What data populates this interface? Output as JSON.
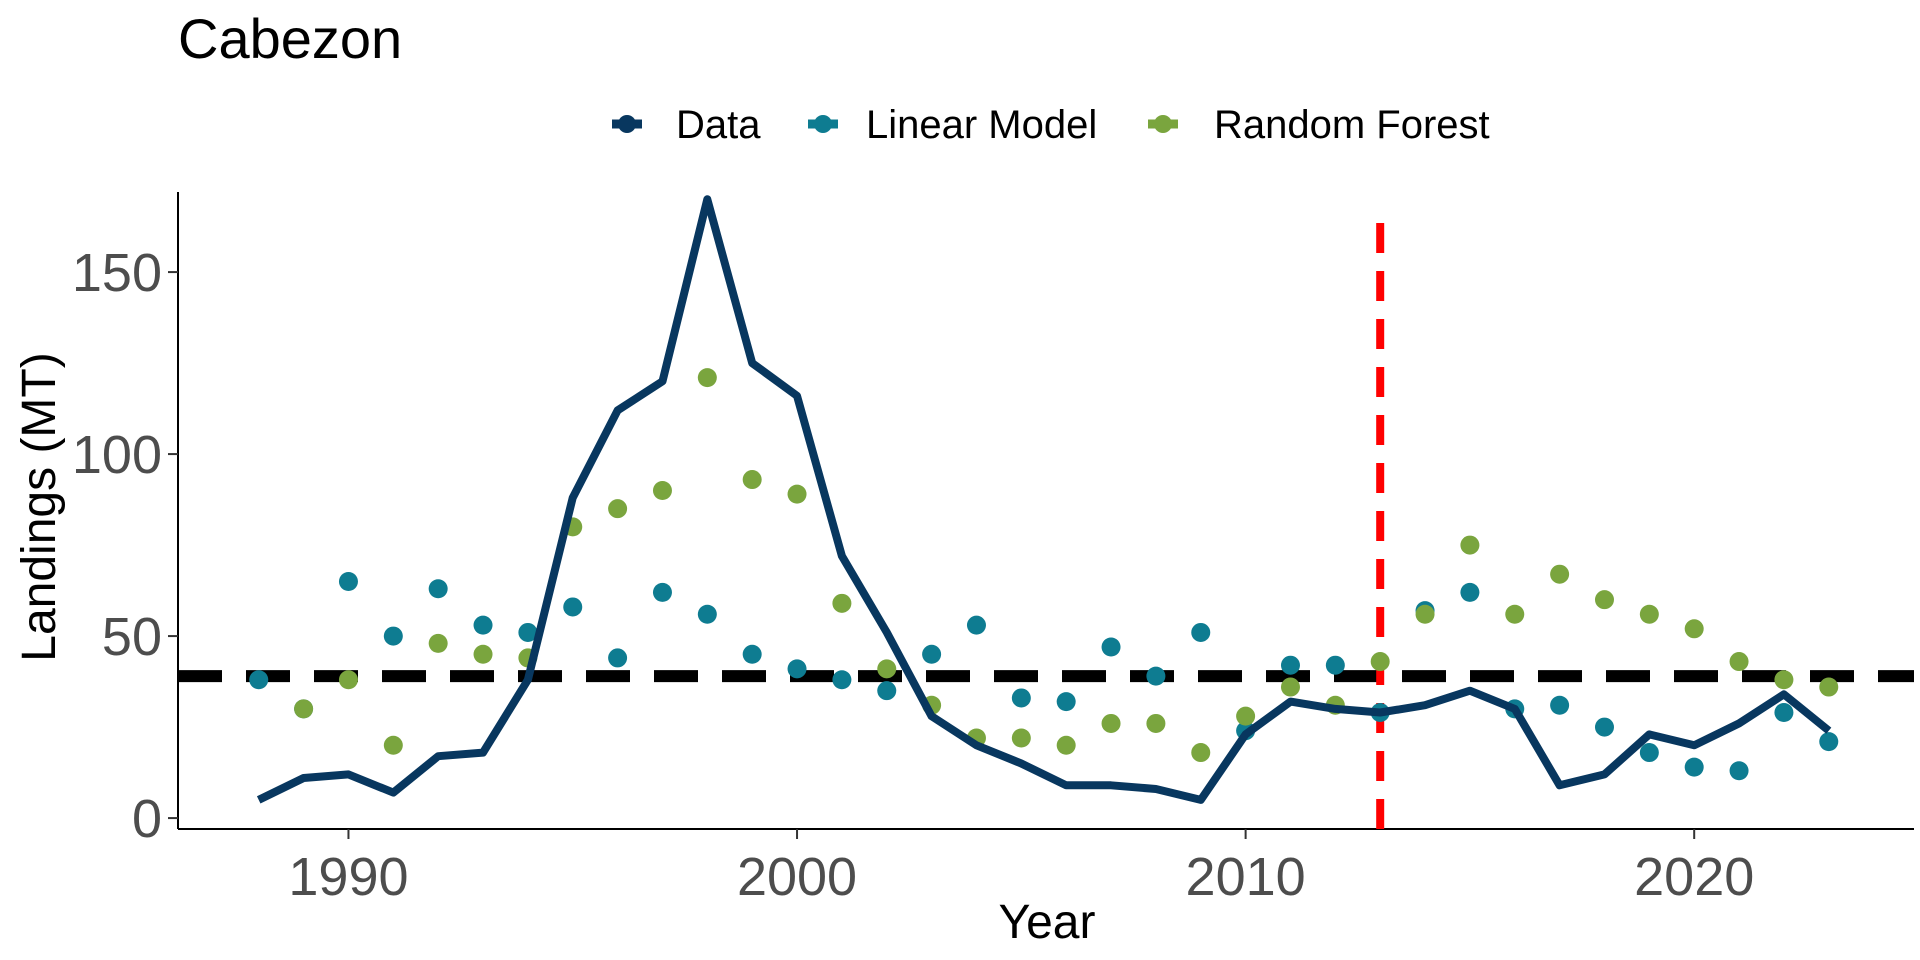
{
  "chart_data": {
    "type": "line",
    "title": "Cabezon",
    "xlabel": "Year",
    "ylabel": "Landings (MT)",
    "xlim": [
      1986.2,
      2024.9
    ],
    "ylim": [
      -3,
      172
    ],
    "x_ticks": [
      1990,
      2000,
      2010,
      2020
    ],
    "x_tick_labels": [
      "1990",
      "2000",
      "2010",
      "2020"
    ],
    "y_ticks": [
      0,
      50,
      100,
      150
    ],
    "y_tick_labels": [
      "0",
      "50",
      "100",
      "150"
    ],
    "grid": false,
    "legend_position": "top",
    "series": [
      {
        "name": "Data",
        "kind": "line",
        "color": "#08375f",
        "x": [
          1988,
          1989,
          1990,
          1991,
          1992,
          1993,
          1994,
          1995,
          1996,
          1997,
          1998,
          1999,
          2000,
          2001,
          2002,
          2003,
          2004,
          2005,
          2006,
          2007,
          2008,
          2009,
          2010,
          2011,
          2012,
          2013,
          2014,
          2015,
          2016,
          2017,
          2018,
          2019,
          2020,
          2021,
          2022,
          2023
        ],
        "values": [
          5,
          11,
          12,
          7,
          17,
          18,
          38,
          88,
          112,
          120,
          170,
          125,
          116,
          72,
          51,
          28,
          20,
          15,
          9,
          9,
          8,
          5,
          23,
          32,
          30,
          29,
          31,
          35,
          30,
          9,
          12,
          23,
          20,
          26,
          34,
          24
        ]
      },
      {
        "name": "Linear Model",
        "kind": "points",
        "color": "#0e7c91",
        "x": [
          1988,
          1989,
          1990,
          1991,
          1992,
          1993,
          1994,
          1995,
          1996,
          1997,
          1998,
          1999,
          2000,
          2001,
          2002,
          2003,
          2004,
          2005,
          2006,
          2007,
          2008,
          2009,
          2010,
          2011,
          2012,
          2013,
          2014,
          2015,
          2016,
          2017,
          2018,
          2019,
          2020,
          2021,
          2022,
          2023
        ],
        "values": [
          38,
          30,
          65,
          50,
          63,
          53,
          51,
          58,
          44,
          62,
          56,
          45,
          41,
          38,
          35,
          45,
          53,
          33,
          32,
          47,
          39,
          51,
          24,
          42,
          42,
          29,
          57,
          62,
          30,
          31,
          25,
          18,
          14,
          13,
          29,
          21
        ]
      },
      {
        "name": "Random Forest",
        "kind": "points",
        "color": "#7aa53e",
        "x": [
          1989,
          1990,
          1991,
          1992,
          1993,
          1994,
          1995,
          1996,
          1997,
          1998,
          1999,
          2000,
          2001,
          2002,
          2003,
          2004,
          2005,
          2006,
          2007,
          2008,
          2009,
          2010,
          2011,
          2012,
          2013,
          2014,
          2015,
          2016,
          2017,
          2018,
          2019,
          2020,
          2021,
          2022,
          2023
        ],
        "values": [
          30,
          38,
          20,
          48,
          45,
          44,
          80,
          85,
          90,
          121,
          93,
          89,
          59,
          41,
          31,
          22,
          22,
          20,
          26,
          26,
          18,
          28,
          36,
          31,
          43,
          56,
          75,
          56,
          67,
          60,
          56,
          52,
          43,
          38,
          36
        ]
      }
    ],
    "reference_lines": [
      {
        "orientation": "horizontal",
        "value": 39,
        "color": "#000000",
        "style": "dashed"
      },
      {
        "orientation": "vertical",
        "value": 2013,
        "color": "#ff0000",
        "style": "dashed"
      }
    ]
  }
}
